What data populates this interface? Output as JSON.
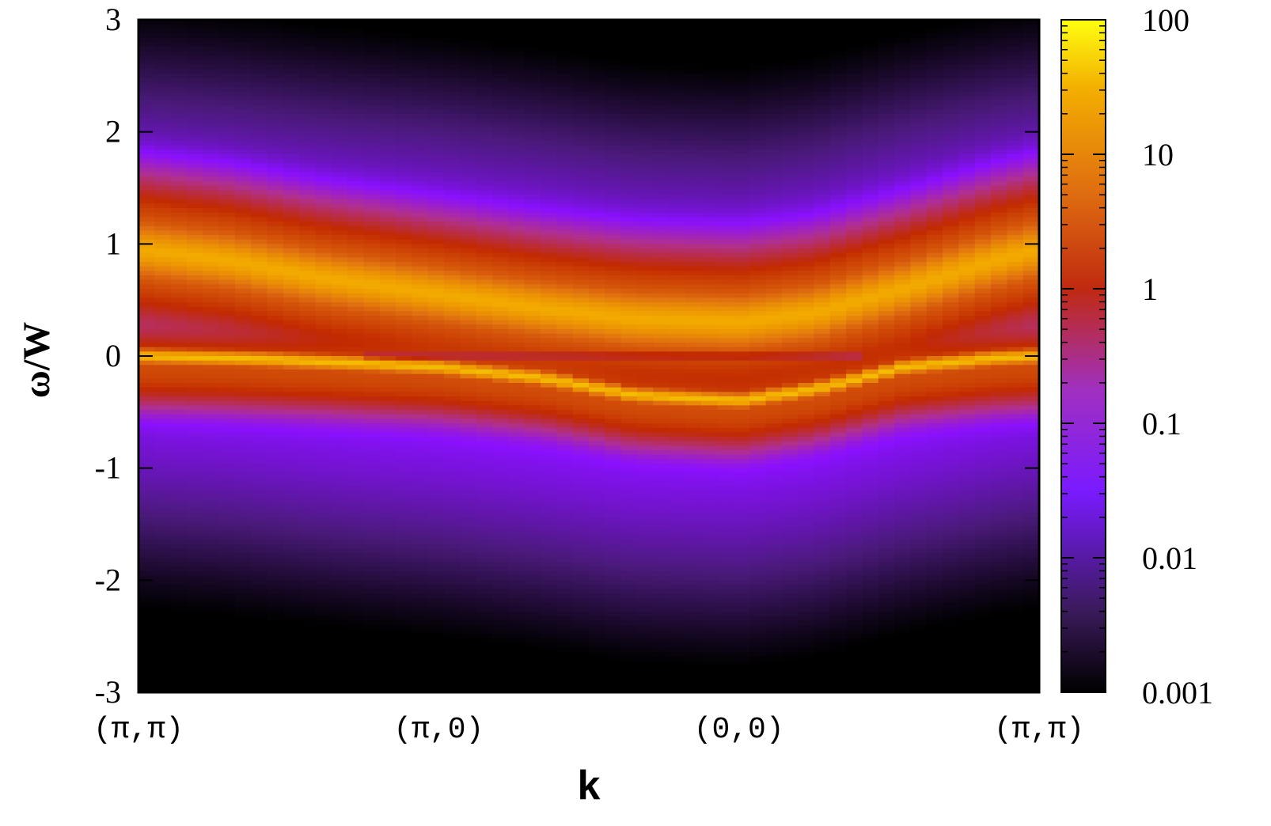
{
  "chart_data": {
    "type": "heatmap",
    "title": "",
    "xlabel": "k",
    "ylabel": "ω/W",
    "x_tick_labels": [
      "(π,π)",
      "(π,0)",
      "(0,0)",
      "(π,π)"
    ],
    "y_tick_labels": [
      "-3",
      "-2",
      "-1",
      "0",
      "1",
      "2",
      "3"
    ],
    "ylim": [
      -3,
      3
    ],
    "colorbar": {
      "scale": "log",
      "range": [
        0.001,
        100
      ],
      "tick_labels": [
        "0.001",
        "0.01",
        "0.1",
        "1",
        "10",
        "100"
      ],
      "colors": [
        "#000000",
        "#4a1a7a",
        "#8a10ff",
        "#b03090",
        "#c22a00",
        "#e07010",
        "#f0a000",
        "#ffff00"
      ]
    },
    "series": [
      {
        "name": "",
        "description": "upper band",
        "k_path_fraction": [
          0,
          0.1,
          0.2,
          0.333,
          0.45,
          0.55,
          0.667,
          0.75,
          0.85,
          0.95,
          1
        ],
        "omega": [
          0.95,
          0.85,
          0.7,
          0.55,
          0.42,
          0.33,
          0.3,
          0.38,
          0.6,
          0.85,
          0.95
        ],
        "peak_intensity": 20
      },
      {
        "name": "",
        "description": "lower quasiparticle band",
        "k_path_fraction": [
          0,
          0.1,
          0.2,
          0.333,
          0.45,
          0.55,
          0.667,
          0.75,
          0.85,
          0.95,
          1
        ],
        "omega": [
          0.0,
          -0.02,
          -0.05,
          -0.1,
          -0.2,
          -0.35,
          -0.4,
          -0.3,
          -0.1,
          -0.02,
          0.0
        ],
        "peak_intensity": 30
      }
    ],
    "grid": false
  }
}
